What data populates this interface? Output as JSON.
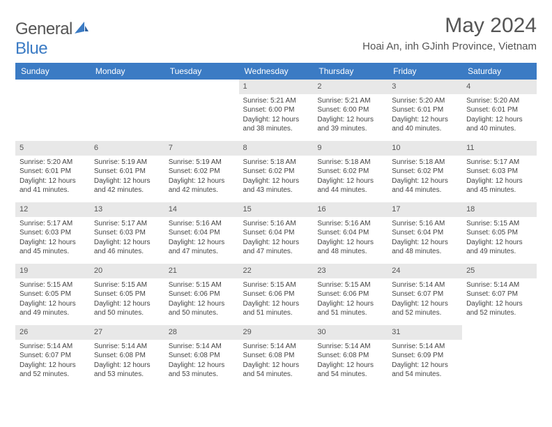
{
  "logo": {
    "word1": "General",
    "word2": "Blue"
  },
  "title": "May 2024",
  "location": "Hoai An, inh GJinh Province, Vietnam",
  "colors": {
    "header_bg": "#3b7bc4",
    "header_text": "#ffffff",
    "daybar_bg": "#e8e8e8",
    "text": "#444444",
    "page_bg": "#ffffff"
  },
  "daysOfWeek": [
    "Sunday",
    "Monday",
    "Tuesday",
    "Wednesday",
    "Thursday",
    "Friday",
    "Saturday"
  ],
  "weeks": [
    [
      {
        "n": "",
        "sr": "",
        "ss": "",
        "dl": ""
      },
      {
        "n": "",
        "sr": "",
        "ss": "",
        "dl": ""
      },
      {
        "n": "",
        "sr": "",
        "ss": "",
        "dl": ""
      },
      {
        "n": "1",
        "sr": "Sunrise: 5:21 AM",
        "ss": "Sunset: 6:00 PM",
        "dl": "Daylight: 12 hours and 38 minutes."
      },
      {
        "n": "2",
        "sr": "Sunrise: 5:21 AM",
        "ss": "Sunset: 6:00 PM",
        "dl": "Daylight: 12 hours and 39 minutes."
      },
      {
        "n": "3",
        "sr": "Sunrise: 5:20 AM",
        "ss": "Sunset: 6:01 PM",
        "dl": "Daylight: 12 hours and 40 minutes."
      },
      {
        "n": "4",
        "sr": "Sunrise: 5:20 AM",
        "ss": "Sunset: 6:01 PM",
        "dl": "Daylight: 12 hours and 40 minutes."
      }
    ],
    [
      {
        "n": "5",
        "sr": "Sunrise: 5:20 AM",
        "ss": "Sunset: 6:01 PM",
        "dl": "Daylight: 12 hours and 41 minutes."
      },
      {
        "n": "6",
        "sr": "Sunrise: 5:19 AM",
        "ss": "Sunset: 6:01 PM",
        "dl": "Daylight: 12 hours and 42 minutes."
      },
      {
        "n": "7",
        "sr": "Sunrise: 5:19 AM",
        "ss": "Sunset: 6:02 PM",
        "dl": "Daylight: 12 hours and 42 minutes."
      },
      {
        "n": "8",
        "sr": "Sunrise: 5:18 AM",
        "ss": "Sunset: 6:02 PM",
        "dl": "Daylight: 12 hours and 43 minutes."
      },
      {
        "n": "9",
        "sr": "Sunrise: 5:18 AM",
        "ss": "Sunset: 6:02 PM",
        "dl": "Daylight: 12 hours and 44 minutes."
      },
      {
        "n": "10",
        "sr": "Sunrise: 5:18 AM",
        "ss": "Sunset: 6:02 PM",
        "dl": "Daylight: 12 hours and 44 minutes."
      },
      {
        "n": "11",
        "sr": "Sunrise: 5:17 AM",
        "ss": "Sunset: 6:03 PM",
        "dl": "Daylight: 12 hours and 45 minutes."
      }
    ],
    [
      {
        "n": "12",
        "sr": "Sunrise: 5:17 AM",
        "ss": "Sunset: 6:03 PM",
        "dl": "Daylight: 12 hours and 45 minutes."
      },
      {
        "n": "13",
        "sr": "Sunrise: 5:17 AM",
        "ss": "Sunset: 6:03 PM",
        "dl": "Daylight: 12 hours and 46 minutes."
      },
      {
        "n": "14",
        "sr": "Sunrise: 5:16 AM",
        "ss": "Sunset: 6:04 PM",
        "dl": "Daylight: 12 hours and 47 minutes."
      },
      {
        "n": "15",
        "sr": "Sunrise: 5:16 AM",
        "ss": "Sunset: 6:04 PM",
        "dl": "Daylight: 12 hours and 47 minutes."
      },
      {
        "n": "16",
        "sr": "Sunrise: 5:16 AM",
        "ss": "Sunset: 6:04 PM",
        "dl": "Daylight: 12 hours and 48 minutes."
      },
      {
        "n": "17",
        "sr": "Sunrise: 5:16 AM",
        "ss": "Sunset: 6:04 PM",
        "dl": "Daylight: 12 hours and 48 minutes."
      },
      {
        "n": "18",
        "sr": "Sunrise: 5:15 AM",
        "ss": "Sunset: 6:05 PM",
        "dl": "Daylight: 12 hours and 49 minutes."
      }
    ],
    [
      {
        "n": "19",
        "sr": "Sunrise: 5:15 AM",
        "ss": "Sunset: 6:05 PM",
        "dl": "Daylight: 12 hours and 49 minutes."
      },
      {
        "n": "20",
        "sr": "Sunrise: 5:15 AM",
        "ss": "Sunset: 6:05 PM",
        "dl": "Daylight: 12 hours and 50 minutes."
      },
      {
        "n": "21",
        "sr": "Sunrise: 5:15 AM",
        "ss": "Sunset: 6:06 PM",
        "dl": "Daylight: 12 hours and 50 minutes."
      },
      {
        "n": "22",
        "sr": "Sunrise: 5:15 AM",
        "ss": "Sunset: 6:06 PM",
        "dl": "Daylight: 12 hours and 51 minutes."
      },
      {
        "n": "23",
        "sr": "Sunrise: 5:15 AM",
        "ss": "Sunset: 6:06 PM",
        "dl": "Daylight: 12 hours and 51 minutes."
      },
      {
        "n": "24",
        "sr": "Sunrise: 5:14 AM",
        "ss": "Sunset: 6:07 PM",
        "dl": "Daylight: 12 hours and 52 minutes."
      },
      {
        "n": "25",
        "sr": "Sunrise: 5:14 AM",
        "ss": "Sunset: 6:07 PM",
        "dl": "Daylight: 12 hours and 52 minutes."
      }
    ],
    [
      {
        "n": "26",
        "sr": "Sunrise: 5:14 AM",
        "ss": "Sunset: 6:07 PM",
        "dl": "Daylight: 12 hours and 52 minutes."
      },
      {
        "n": "27",
        "sr": "Sunrise: 5:14 AM",
        "ss": "Sunset: 6:08 PM",
        "dl": "Daylight: 12 hours and 53 minutes."
      },
      {
        "n": "28",
        "sr": "Sunrise: 5:14 AM",
        "ss": "Sunset: 6:08 PM",
        "dl": "Daylight: 12 hours and 53 minutes."
      },
      {
        "n": "29",
        "sr": "Sunrise: 5:14 AM",
        "ss": "Sunset: 6:08 PM",
        "dl": "Daylight: 12 hours and 54 minutes."
      },
      {
        "n": "30",
        "sr": "Sunrise: 5:14 AM",
        "ss": "Sunset: 6:08 PM",
        "dl": "Daylight: 12 hours and 54 minutes."
      },
      {
        "n": "31",
        "sr": "Sunrise: 5:14 AM",
        "ss": "Sunset: 6:09 PM",
        "dl": "Daylight: 12 hours and 54 minutes."
      },
      {
        "n": "",
        "sr": "",
        "ss": "",
        "dl": ""
      }
    ]
  ]
}
